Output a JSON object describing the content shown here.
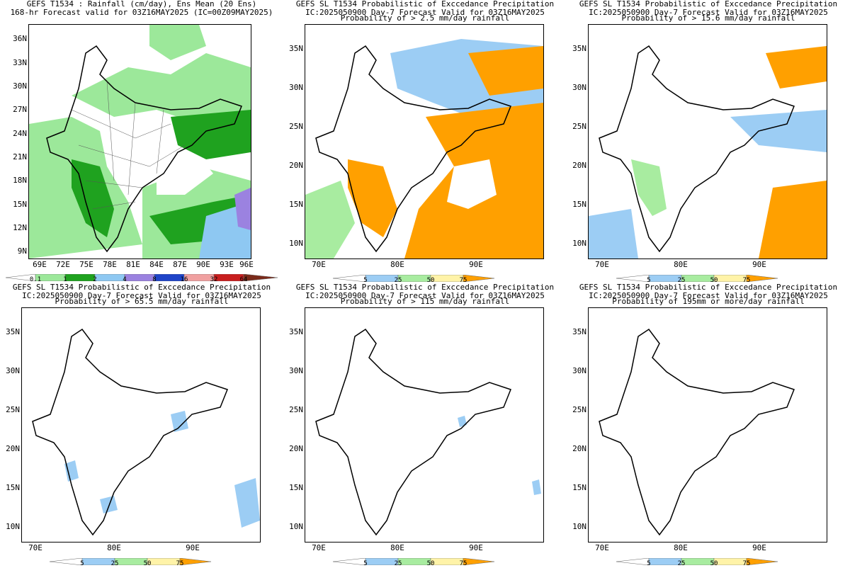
{
  "colors": {
    "c_white": "#ffffff",
    "c_lgreen": "#9ce89a",
    "c_green": "#1fa21f",
    "c_dgreen": "#0a8a0a",
    "c_lblue": "#8ec8f2",
    "c_purple": "#9b82e0",
    "c_blue": "#1f44c8",
    "c_pink": "#f0a0a0",
    "c_red": "#c81e1e",
    "c_brown": "#7a2a1a",
    "p_blue": "#9ccdf4",
    "p_green": "#a8eca0",
    "p_yellow": "#fff3a8",
    "p_orange": "#ffa000"
  },
  "panels": [
    {
      "id": "ensmean",
      "title_lines": [
        "GEFS T1534 : Rainfall (cm/day), Ens Mean (20 Ens)",
        "168-hr Forecast valid for 03Z16MAY2025 (IC=00Z09MAY2025)",
        ""
      ],
      "lat_ticks": [
        "36N",
        "33N",
        "30N",
        "27N",
        "24N",
        "21N",
        "18N",
        "15N",
        "12N",
        "9N"
      ],
      "lon_ticks": [
        "69E",
        "72E",
        "75E",
        "78E",
        "81E",
        "84E",
        "87E",
        "90E",
        "93E",
        "96E"
      ],
      "colorbar": {
        "labels": [
          "0.1",
          "1",
          "2",
          "4",
          "8",
          "16",
          "32",
          "64"
        ],
        "colors": [
          "c_white",
          "c_lgreen",
          "c_green",
          "c_lblue",
          "c_purple",
          "c_blue",
          "c_pink",
          "c_red",
          "c_brown"
        ]
      }
    },
    {
      "id": "prob25",
      "title_lines": [
        "GEFS SL T1534 Probabilistic of Exccedance Precipitation",
        "IC:2025050900 Day-7 Forecast Valid for 03Z16MAY2025",
        "Probability of > 2.5 mm/day rainfall"
      ],
      "lat_ticks": [
        "35N",
        "30N",
        "25N",
        "20N",
        "15N",
        "10N"
      ],
      "lon_ticks": [
        "70E",
        "80E",
        "90E"
      ],
      "colorbar": {
        "labels": [
          "5",
          "25",
          "50",
          "75"
        ],
        "colors": [
          "c_white",
          "p_blue",
          "p_green",
          "p_yellow",
          "p_orange"
        ]
      }
    },
    {
      "id": "prob156",
      "title_lines": [
        "GEFS SL T1534 Probabilistic of Exccedance Precipitation",
        "IC:2025050900 Day-7 Forecast Valid for 03Z16MAY2025",
        "Probability of > 15.6 mm/day rainfall"
      ],
      "lat_ticks": [
        "35N",
        "30N",
        "25N",
        "20N",
        "15N",
        "10N"
      ],
      "lon_ticks": [
        "70E",
        "80E",
        "90E"
      ],
      "colorbar": {
        "labels": [
          "5",
          "25",
          "50",
          "75"
        ],
        "colors": [
          "c_white",
          "p_blue",
          "p_green",
          "p_yellow",
          "p_orange"
        ]
      }
    },
    {
      "id": "prob655",
      "title_lines": [
        "GEFS SL T1534 Probabilistic of Exccedance Precipitation",
        "IC:2025050900 Day-7 Forecast Valid for 03Z16MAY2025",
        "Probability of > 65.5 mm/day rainfall"
      ],
      "lat_ticks": [
        "35N",
        "30N",
        "25N",
        "20N",
        "15N",
        "10N"
      ],
      "lon_ticks": [
        "70E",
        "80E",
        "90E"
      ],
      "colorbar": {
        "labels": [
          "5",
          "25",
          "50",
          "75"
        ],
        "colors": [
          "c_white",
          "p_blue",
          "p_green",
          "p_yellow",
          "p_orange"
        ]
      }
    },
    {
      "id": "prob115",
      "title_lines": [
        "GEFS SL T1534 Probabilistic of Exccedance Precipitation",
        "IC:2025050900 Day-7 Forecast Valid for 03Z16MAY2025",
        "Probability of > 115 mm/day rainfall"
      ],
      "lat_ticks": [
        "35N",
        "30N",
        "25N",
        "20N",
        "15N",
        "10N"
      ],
      "lon_ticks": [
        "70E",
        "80E",
        "90E"
      ],
      "colorbar": {
        "labels": [
          "5",
          "25",
          "50",
          "75"
        ],
        "colors": [
          "c_white",
          "p_blue",
          "p_green",
          "p_yellow",
          "p_orange"
        ]
      }
    },
    {
      "id": "prob195",
      "title_lines": [
        "GEFS SL T1534 Probabilistic of Exccedance Precipitation",
        "IC:2025050900 Day-7 Forecast Valid for 03Z16MAY2025",
        "Probability of 195mm or more/day rainfall"
      ],
      "lat_ticks": [
        "35N",
        "30N",
        "25N",
        "20N",
        "15N",
        "10N"
      ],
      "lon_ticks": [
        "70E",
        "80E",
        "90E"
      ],
      "colorbar": {
        "labels": [
          "5",
          "25",
          "50",
          "75"
        ],
        "colors": [
          "c_white",
          "p_blue",
          "p_green",
          "p_yellow",
          "p_orange"
        ]
      }
    }
  ]
}
